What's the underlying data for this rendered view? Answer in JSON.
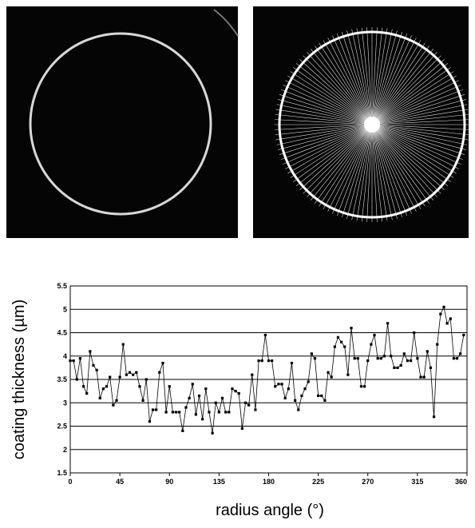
{
  "chart_data": {
    "type": "line",
    "x_label": "radius angle (°)",
    "y_label": "coating thickness (µm)",
    "x": [
      0,
      3,
      6,
      9,
      12,
      15,
      18,
      21,
      24,
      27,
      30,
      33,
      36,
      39,
      42,
      45,
      48,
      51,
      54,
      57,
      60,
      63,
      66,
      69,
      72,
      75,
      78,
      81,
      84,
      87,
      90,
      93,
      96,
      99,
      102,
      105,
      108,
      111,
      114,
      117,
      120,
      123,
      126,
      129,
      132,
      135,
      138,
      141,
      144,
      147,
      150,
      153,
      156,
      159,
      162,
      165,
      168,
      171,
      174,
      177,
      180,
      183,
      186,
      189,
      192,
      195,
      198,
      201,
      204,
      207,
      210,
      213,
      216,
      219,
      222,
      225,
      228,
      231,
      234,
      237,
      240,
      243,
      246,
      249,
      252,
      255,
      258,
      261,
      264,
      267,
      270,
      273,
      276,
      279,
      282,
      285,
      288,
      291,
      294,
      297,
      300,
      303,
      306,
      309,
      312,
      315,
      318,
      321,
      324,
      327,
      330,
      333,
      336,
      339,
      342,
      345,
      348,
      351,
      354,
      357
    ],
    "series": [
      {
        "color": "#000000",
        "values": [
          3.9,
          3.9,
          3.5,
          3.95,
          3.35,
          3.2,
          4.1,
          3.8,
          3.7,
          3.1,
          3.3,
          3.35,
          3.55,
          2.95,
          3.05,
          3.55,
          4.25,
          3.6,
          3.65,
          3.6,
          3.65,
          3.35,
          3.05,
          3.5,
          2.6,
          2.85,
          2.85,
          3.65,
          3.85,
          2.8,
          3.35,
          2.8,
          2.8,
          2.8,
          2.4,
          2.9,
          3.1,
          3.4,
          2.75,
          3.15,
          2.65,
          3.3,
          2.8,
          2.35,
          3.0,
          2.8,
          3.1,
          2.8,
          2.8,
          3.3,
          3.25,
          3.2,
          2.45,
          3.0,
          2.95,
          3.6,
          2.85,
          3.9,
          3.9,
          4.45,
          3.9,
          3.9,
          3.35,
          3.4,
          3.4,
          3.1,
          3.3,
          3.85,
          3.05,
          2.85,
          3.15,
          3.3,
          3.45,
          4.05,
          3.95,
          3.15,
          3.15,
          3.05,
          3.65,
          3.55,
          4.2,
          4.4,
          4.3,
          4.2,
          3.6,
          4.6,
          3.95,
          3.95,
          3.35,
          3.35,
          3.9,
          4.25,
          4.45,
          3.95,
          3.95,
          4.0,
          4.7,
          4.0,
          3.75,
          3.75,
          3.8,
          4.05,
          3.9,
          3.9,
          4.5,
          3.95,
          3.55,
          3.55,
          4.1,
          3.75,
          2.7,
          4.25,
          4.9,
          5.05,
          4.7,
          4.8,
          3.95,
          3.95,
          4.05,
          4.45
        ]
      }
    ],
    "xlim": [
      0,
      360
    ],
    "xticks": [
      0,
      45,
      90,
      135,
      180,
      225,
      270,
      315,
      360
    ],
    "ylim": [
      1.5,
      5.5
    ],
    "yticks": [
      1.5,
      2,
      2.5,
      3,
      3.5,
      4,
      4.5,
      5,
      5.5
    ],
    "grid": true
  }
}
